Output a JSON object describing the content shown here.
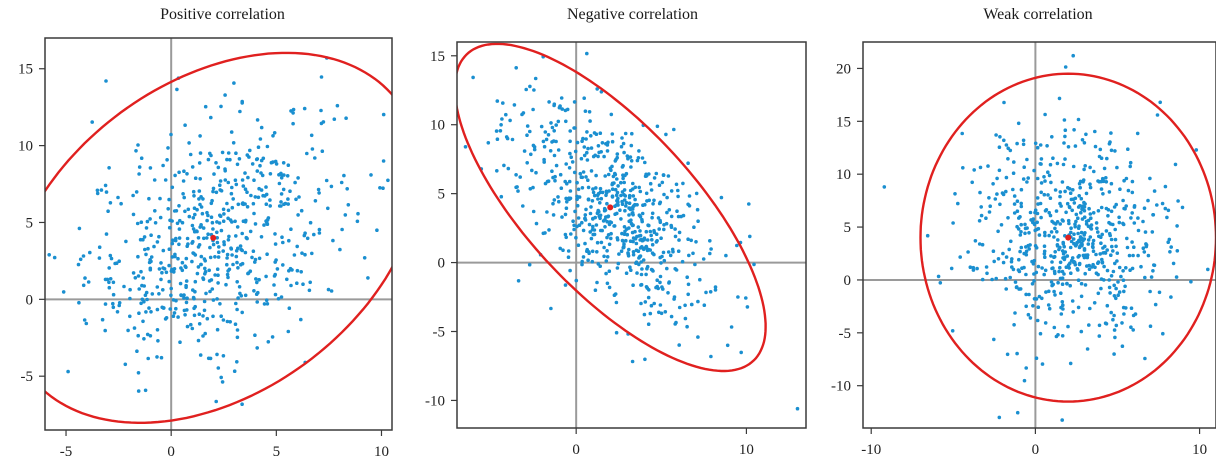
{
  "chart_data": [
    {
      "type": "scatter",
      "title": "Positive correlation",
      "xlabel": "",
      "ylabel": "",
      "xlim": [
        -6,
        10.5
      ],
      "ylim": [
        -8.5,
        17
      ],
      "xticks": [
        -5,
        0,
        5,
        10
      ],
      "yticks": [
        -5,
        0,
        5,
        10,
        15
      ],
      "mean": [
        2,
        4
      ],
      "ellipse": {
        "center": [
          2,
          4
        ],
        "semi_major": 13,
        "semi_minor": 8.5,
        "angle_deg": 60
      },
      "points": {
        "count": 650,
        "mean": [
          2,
          4
        ],
        "sd": [
          3,
          4
        ],
        "correlation": 0.35
      },
      "outliers": [
        [
          7.4,
          15.7
        ],
        [
          10.1,
          9.0
        ],
        [
          -5.8,
          2.9
        ],
        [
          -4.9,
          -4.7
        ],
        [
          9.2,
          2.7
        ],
        [
          -3.1,
          14.2
        ]
      ]
    },
    {
      "type": "scatter",
      "title": "Negative correlation",
      "xlabel": "",
      "ylabel": "",
      "xlim": [
        -7,
        13.5
      ],
      "ylim": [
        -12,
        16
      ],
      "xticks": [
        0,
        10
      ],
      "yticks": [
        -10,
        -5,
        0,
        5,
        10,
        15
      ],
      "mean": [
        2,
        4
      ],
      "ellipse": {
        "center": [
          2,
          4
        ],
        "semi_major": 14,
        "semi_minor": 5.3,
        "angle_deg": -55
      },
      "points": {
        "count": 650,
        "mean": [
          2,
          4
        ],
        "sd": [
          3,
          4
        ],
        "correlation": -0.6
      },
      "outliers": [
        [
          13,
          -10.6
        ],
        [
          10.2,
          1.9
        ],
        [
          -6.5,
          8.4
        ],
        [
          9.5,
          -2.5
        ],
        [
          8.9,
          -6.0
        ]
      ]
    },
    {
      "type": "scatter",
      "title": "Weak correlation",
      "xlabel": "",
      "ylabel": "",
      "xlim": [
        -10.5,
        11
      ],
      "ylim": [
        -14,
        22.5
      ],
      "xticks": [
        -10,
        0,
        10
      ],
      "yticks": [
        -10,
        -5,
        0,
        5,
        10,
        15,
        20
      ],
      "mean": [
        2,
        4
      ],
      "ellipse": {
        "center": [
          2,
          4
        ],
        "semi_major": 15.5,
        "semi_minor": 9,
        "angle_deg": 90
      },
      "points": {
        "count": 650,
        "mean": [
          2,
          4
        ],
        "sd": [
          3,
          5
        ],
        "correlation": 0.0
      },
      "outliers": [
        [
          -9.2,
          8.8
        ],
        [
          2.3,
          21.2
        ],
        [
          -2.2,
          -13.0
        ],
        [
          10.5,
          1.0
        ],
        [
          9.8,
          12.3
        ]
      ]
    }
  ],
  "colors": {
    "points": "#1a8fd0",
    "ellipse": "#e0201f",
    "mean": "#e0201f",
    "axes": "#9a9a9a",
    "frame": "#3a3a3a"
  }
}
